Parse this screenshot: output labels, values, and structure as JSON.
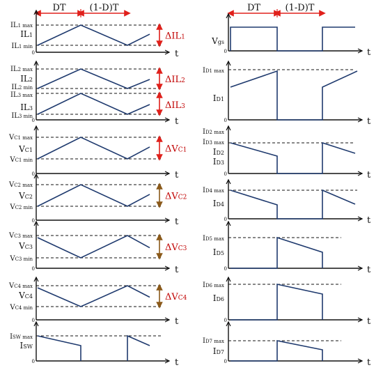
{
  "timing": {
    "dt": "DT",
    "one_minus_d_t": "(1-D)T"
  },
  "axis": {
    "t": "t",
    "origin": "0"
  },
  "colors": {
    "wave": "#1f3a6e",
    "red": "#e0201b",
    "brown": "#8b5a1a",
    "text": "#111111"
  },
  "left": [
    {
      "id": "il1",
      "levels": [
        [
          "IL",
          "1 max"
        ],
        [
          "IL",
          "1"
        ],
        [
          "IL",
          "1 min"
        ]
      ],
      "delta": [
        "ΔIL",
        "1"
      ],
      "arrow": "red"
    },
    {
      "id": "il23",
      "levels": [
        [
          "IL",
          "2 max"
        ],
        [
          "IL",
          "2"
        ],
        [
          "IL",
          "2 min"
        ],
        [
          "IL",
          "3 max"
        ],
        [
          "IL",
          "3"
        ],
        [
          "IL",
          "3 min"
        ]
      ],
      "delta2": [
        "ΔIL",
        "2"
      ],
      "delta3": [
        "ΔIL",
        "3"
      ],
      "arrow": "red"
    },
    {
      "id": "vc1",
      "levels": [
        [
          "V",
          "C1 max"
        ],
        [
          "V",
          "C1"
        ],
        [
          "V",
          "C1 min"
        ]
      ],
      "delta": [
        "ΔV",
        "C1"
      ],
      "arrow": "red"
    },
    {
      "id": "vc2",
      "levels": [
        [
          "V",
          "C2 max"
        ],
        [
          "V",
          "C2"
        ],
        [
          "V",
          "C2 min"
        ]
      ],
      "delta": [
        "ΔV",
        "C2"
      ],
      "arrow": "brown"
    },
    {
      "id": "vc3",
      "levels": [
        [
          "V",
          "C3 max"
        ],
        [
          "V",
          "C3"
        ],
        [
          "V",
          "C3 min"
        ]
      ],
      "delta": [
        "ΔV",
        "C3"
      ],
      "arrow": "brown"
    },
    {
      "id": "vc4",
      "levels": [
        [
          "V",
          "C4 max"
        ],
        [
          "V",
          "C4"
        ],
        [
          "V",
          "C4 min"
        ]
      ],
      "delta": [
        "ΔV",
        "C4"
      ],
      "arrow": "brown"
    },
    {
      "id": "isw",
      "levels": [
        [
          "I",
          "SW max"
        ],
        [
          "I",
          "SW"
        ]
      ]
    }
  ],
  "right": [
    {
      "id": "vgs",
      "labels": [
        [
          "V",
          "gs"
        ]
      ]
    },
    {
      "id": "id1",
      "labels": [
        [
          "I",
          "D1 max"
        ],
        [
          "I",
          "D1"
        ]
      ]
    },
    {
      "id": "id23",
      "labels": [
        [
          "I",
          "D2 max"
        ],
        [
          "I",
          "D3 max"
        ],
        [
          "I",
          "D2"
        ],
        [
          "I",
          "D3"
        ]
      ]
    },
    {
      "id": "id4",
      "labels": [
        [
          "I",
          "D4 max"
        ],
        [
          "I",
          "D4"
        ]
      ]
    },
    {
      "id": "id5",
      "labels": [
        [
          "I",
          "D5 max"
        ],
        [
          "I",
          "D5"
        ]
      ]
    },
    {
      "id": "id6",
      "labels": [
        [
          "I",
          "D6 max"
        ],
        [
          "I",
          "D6"
        ]
      ]
    },
    {
      "id": "id7",
      "labels": [
        [
          "I",
          "D7 max"
        ],
        [
          "I",
          "D7"
        ]
      ]
    }
  ]
}
